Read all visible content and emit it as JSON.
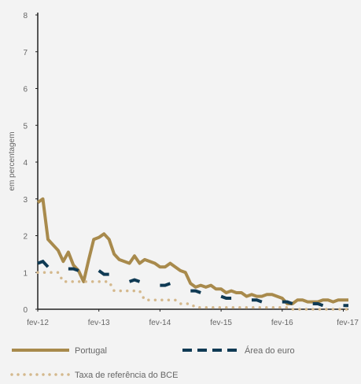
{
  "chart_data": {
    "type": "line",
    "title": "",
    "ylabel": "em percentagem",
    "xlabel": "",
    "ylim": [
      0,
      8
    ],
    "yticks": [
      0,
      1,
      2,
      3,
      4,
      5,
      6,
      7,
      8
    ],
    "x_ticks": [
      "fev-12",
      "fev-13",
      "fev-14",
      "fev-15",
      "fev-16",
      "fev-17"
    ],
    "legend_position": "bottom",
    "grid": false,
    "series": [
      {
        "name": "Portugal",
        "style": "solid",
        "color": "#a88a4c",
        "values": [
          2.9,
          3.0,
          1.9,
          1.75,
          1.6,
          1.3,
          1.55,
          1.2,
          1.05,
          0.75,
          1.35,
          1.9,
          1.95,
          2.05,
          1.9,
          1.5,
          1.35,
          1.3,
          1.25,
          1.45,
          1.25,
          1.35,
          1.3,
          1.25,
          1.15,
          1.15,
          1.25,
          1.15,
          1.05,
          1.0,
          0.7,
          0.6,
          0.65,
          0.6,
          0.65,
          0.55,
          0.55,
          0.45,
          0.5,
          0.45,
          0.45,
          0.35,
          0.4,
          0.35,
          0.35,
          0.4,
          0.4,
          0.35,
          0.3,
          0.15,
          0.15,
          0.25,
          0.25,
          0.2,
          0.2,
          0.2,
          0.25,
          0.25,
          0.2,
          0.25,
          0.25,
          0.25
        ]
      },
      {
        "name": "Área do euro",
        "style": "dashed",
        "color": "#0f3a54",
        "values": [
          1.25,
          1.3,
          1.15,
          null,
          null,
          null,
          1.1,
          1.1,
          1.05,
          null,
          null,
          null,
          1.05,
          0.95,
          0.95,
          null,
          null,
          null,
          0.75,
          0.8,
          0.75,
          null,
          null,
          null,
          0.65,
          0.65,
          0.7,
          null,
          null,
          null,
          0.5,
          0.5,
          0.45,
          null,
          null,
          null,
          0.35,
          0.3,
          0.3,
          null,
          null,
          null,
          0.25,
          0.25,
          0.2,
          null,
          null,
          null,
          0.2,
          0.2,
          0.15,
          null,
          null,
          null,
          0.15,
          0.15,
          0.1,
          null,
          null,
          null,
          0.1,
          0.1
        ]
      },
      {
        "name": "Taxa de referência do BCE",
        "style": "dotted",
        "color": "#d4b88c",
        "values": [
          1.0,
          1.0,
          1.0,
          1.0,
          1.0,
          0.75,
          0.75,
          0.75,
          0.75,
          0.75,
          0.75,
          0.75,
          0.75,
          0.75,
          0.75,
          0.5,
          0.5,
          0.5,
          0.5,
          0.5,
          0.5,
          0.25,
          0.25,
          0.25,
          0.25,
          0.25,
          0.25,
          0.25,
          0.15,
          0.15,
          0.15,
          0.05,
          0.05,
          0.05,
          0.05,
          0.05,
          0.05,
          0.05,
          0.05,
          0.05,
          0.05,
          0.05,
          0.05,
          0.05,
          0.05,
          0.05,
          0.05,
          0.05,
          0.05,
          0.05,
          0.0,
          0.0,
          0.0,
          0.0,
          0.0,
          0.0,
          0.0,
          0.0,
          0.0,
          0.0,
          0.0,
          0.0
        ]
      }
    ]
  }
}
